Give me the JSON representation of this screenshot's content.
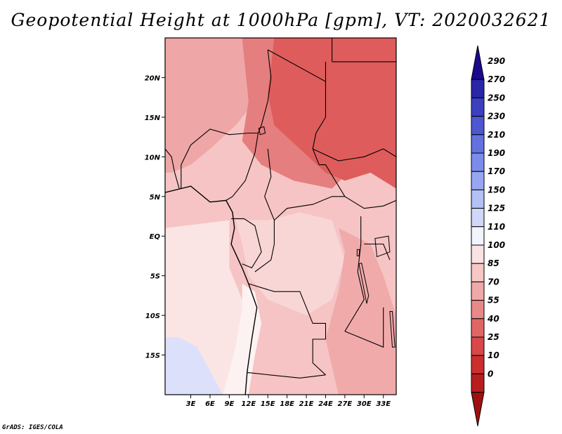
{
  "title": "Geopotential Height at 1000hPa [gpm], VT: 2020032621",
  "footer": "GrADS: IGES/COLA",
  "map": {
    "lon_range": [
      -1,
      35
    ],
    "lat_range": [
      -20,
      25
    ],
    "lat_labels": [
      {
        "lat": 20,
        "text": "20N"
      },
      {
        "lat": 15,
        "text": "15N"
      },
      {
        "lat": 10,
        "text": "10N"
      },
      {
        "lat": 5,
        "text": "5N"
      },
      {
        "lat": 0,
        "text": "EQ"
      },
      {
        "lat": -5,
        "text": "5S"
      },
      {
        "lat": -10,
        "text": "10S"
      },
      {
        "lat": -15,
        "text": "15S"
      }
    ],
    "lon_labels": [
      {
        "lon": 3,
        "text": "3E"
      },
      {
        "lon": 6,
        "text": "6E"
      },
      {
        "lon": 9,
        "text": "9E"
      },
      {
        "lon": 12,
        "text": "12E"
      },
      {
        "lon": 15,
        "text": "15E"
      },
      {
        "lon": 18,
        "text": "18E"
      },
      {
        "lon": 21,
        "text": "21E"
      },
      {
        "lon": 24,
        "text": "24E"
      },
      {
        "lon": 27,
        "text": "27E"
      },
      {
        "lon": 30,
        "text": "30E"
      },
      {
        "lon": 33,
        "text": "33E"
      }
    ]
  },
  "colorbar": {
    "levels": [
      "290",
      "270",
      "250",
      "230",
      "210",
      "190",
      "170",
      "150",
      "125",
      "110",
      "100",
      "85",
      "70",
      "55",
      "40",
      "25",
      "10",
      "0"
    ],
    "colors": [
      "#1a0a8c",
      "#2a26a8",
      "#3b3fc0",
      "#4e56d2",
      "#6472e0",
      "#7c8ceb",
      "#98a6f2",
      "#b4c0f6",
      "#d0d8fa",
      "#f2f4fe",
      "#fbe2e2",
      "#f7c6c6",
      "#f0a8a8",
      "#e88888",
      "#e06666",
      "#d84848",
      "#cc2e2e",
      "#b81e1e",
      "#a01010"
    ]
  },
  "field_regions": [
    {
      "name": "background",
      "value": 100,
      "color": "#f6c4c4"
    },
    {
      "name": "sahel",
      "value": 85,
      "color": "#efa6a6"
    },
    {
      "name": "chad-sudan",
      "value": 55,
      "color": "#e57e7e"
    },
    {
      "name": "sudan-egypt",
      "value": 40,
      "color": "#df5c5c"
    },
    {
      "name": "atlantic",
      "value": 110,
      "color": "#fbe4e4"
    },
    {
      "name": "coastal-angola",
      "value": 125,
      "color": "#fdf2f2"
    },
    {
      "name": "south-atlantic",
      "value": 150,
      "color": "#dde0fb"
    },
    {
      "name": "congo-basin",
      "value": 100,
      "color": "#f9d6d6"
    },
    {
      "name": "east-africa",
      "value": 85,
      "color": "#f1aaaa"
    }
  ]
}
